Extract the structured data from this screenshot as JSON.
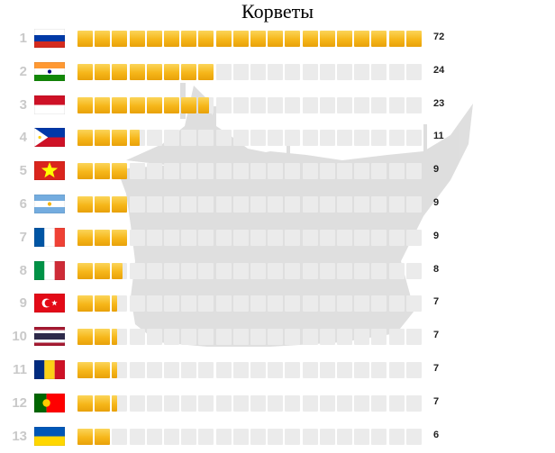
{
  "chart_data": {
    "type": "bar",
    "title": "Корветы",
    "units_per_block": 3,
    "total_blocks": 20,
    "colors": {
      "filled": "#f6b619",
      "empty": "#ebebeb",
      "rank": "#c9c9c9"
    },
    "rows": [
      {
        "rank": "1",
        "flag": "russia-flag",
        "value": 72
      },
      {
        "rank": "2",
        "flag": "india-flag",
        "value": 24
      },
      {
        "rank": "3",
        "flag": "indonesia-flag",
        "value": 23
      },
      {
        "rank": "4",
        "flag": "philippines-flag",
        "value": 11
      },
      {
        "rank": "5",
        "flag": "vietnam-flag",
        "value": 9
      },
      {
        "rank": "6",
        "flag": "argentina-flag",
        "value": 9
      },
      {
        "rank": "7",
        "flag": "france-flag",
        "value": 9
      },
      {
        "rank": "8",
        "flag": "italy-flag",
        "value": 8
      },
      {
        "rank": "9",
        "flag": "turkey-flag",
        "value": 7
      },
      {
        "rank": "10",
        "flag": "thailand-flag",
        "value": 7
      },
      {
        "rank": "11",
        "flag": "romania-flag",
        "value": 7
      },
      {
        "rank": "12",
        "flag": "portugal-flag",
        "value": 7
      },
      {
        "rank": "13",
        "flag": "ukraine-flag",
        "value": 6
      }
    ]
  }
}
